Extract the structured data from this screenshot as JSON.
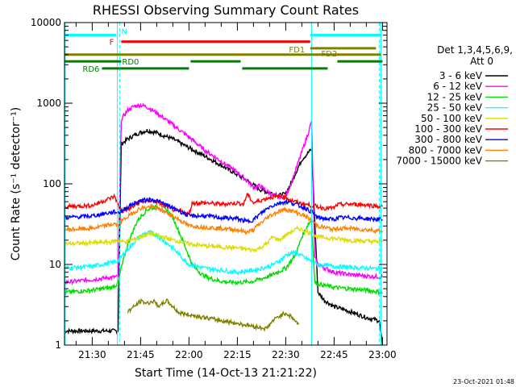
{
  "chart_data": {
    "type": "line",
    "title": "RHESSI Observing Summary Count Rates",
    "xlabel": "Start Time (14-Oct-13 21:21:22)",
    "ylabel": "Count Rate (s⁻¹ detector⁻¹)",
    "y_scale": "log",
    "ylim": [
      1,
      10000
    ],
    "y_ticks": [
      "1",
      "10",
      "100",
      "1000",
      "10000"
    ],
    "x_ticks": [
      "21:30",
      "21:45",
      "22:00",
      "22:15",
      "22:30",
      "22:45",
      "23:00"
    ],
    "x_tick_minutes": [
      30,
      45,
      60,
      75,
      90,
      105,
      120
    ],
    "xlim_minutes": [
      21.4,
      121.4
    ],
    "legend_title_1": "Det 1,3,4,5,6,9,",
    "legend_title_2": "Att 0",
    "legend_position": "right",
    "series": [
      {
        "name": "3 - 6 keV",
        "color": "#000000",
        "x": [
          21.4,
          38,
          39,
          41,
          44,
          47,
          50,
          55,
          60,
          65,
          70,
          75,
          78,
          80,
          82,
          84,
          86,
          88,
          90,
          92,
          95,
          98,
          100,
          102,
          105,
          110,
          115,
          119,
          120
        ],
        "y": [
          1.5,
          1.5,
          310,
          360,
          420,
          460,
          430,
          360,
          280,
          220,
          170,
          130,
          110,
          97,
          85,
          80,
          76,
          72,
          75,
          110,
          200,
          270,
          4.5,
          3.6,
          3,
          2.6,
          2.2,
          2,
          1
        ]
      },
      {
        "name": "6 - 12 keV",
        "color": "#ff00ff",
        "x": [
          21.4,
          30,
          37,
          38,
          39,
          41,
          43,
          45,
          47,
          50,
          55,
          60,
          65,
          70,
          75,
          78,
          80,
          82,
          84,
          86,
          88,
          90,
          92,
          95,
          97,
          98,
          99,
          100,
          102,
          105,
          110,
          115,
          120
        ],
        "y": [
          6,
          6.5,
          7,
          7,
          630,
          820,
          920,
          950,
          900,
          760,
          540,
          380,
          260,
          190,
          140,
          110,
          90,
          95,
          82,
          72,
          68,
          70,
          110,
          250,
          430,
          600,
          12,
          10,
          9,
          8,
          7.5,
          7.2,
          7
        ]
      },
      {
        "name": "12 - 25 keV",
        "color": "#00dd00",
        "x": [
          21.4,
          30,
          36,
          38,
          39,
          41,
          44,
          47,
          50,
          53,
          55,
          57,
          59,
          61,
          64,
          67,
          70,
          73,
          76,
          80,
          85,
          90,
          93,
          95,
          97,
          98,
          99,
          100,
          102,
          105,
          110,
          115,
          120
        ],
        "y": [
          4.5,
          4.8,
          5.2,
          5.8,
          9,
          18,
          35,
          48,
          52,
          48,
          38,
          25,
          16,
          10,
          7.5,
          6.6,
          6.2,
          6,
          6,
          6.2,
          7.2,
          9,
          13,
          22,
          32,
          35,
          6,
          5.8,
          5.5,
          5.2,
          5,
          4.8,
          4.5
        ]
      },
      {
        "name": "25 - 50 keV",
        "color": "#00ffff",
        "x": [
          21.4,
          30,
          36,
          38,
          40,
          42,
          44,
          46,
          48,
          50,
          52,
          55,
          58,
          60,
          65,
          70,
          75,
          80,
          85,
          88,
          90,
          92,
          94,
          96,
          98,
          100,
          105,
          110,
          115,
          120
        ],
        "y": [
          9,
          9.5,
          10.5,
          11,
          14,
          17,
          21,
          24,
          25,
          23,
          20,
          16,
          12,
          10,
          9,
          8.5,
          8,
          8.5,
          9.5,
          11,
          13,
          14,
          13.5,
          12,
          11,
          10,
          9.5,
          9.2,
          9,
          8.8
        ]
      },
      {
        "name": "50 - 100 keV",
        "color": "#dddd00",
        "x": [
          21.4,
          30,
          36,
          38,
          40,
          42,
          44,
          46,
          48,
          50,
          52,
          55,
          58,
          60,
          65,
          70,
          75,
          78,
          80,
          82,
          84,
          86,
          88,
          90,
          92,
          94,
          96,
          98,
          100,
          105,
          110,
          115,
          120
        ],
        "y": [
          18,
          18.5,
          19,
          20,
          19,
          20,
          21,
          23,
          24,
          23,
          22,
          20,
          19,
          18,
          17,
          16.5,
          16,
          15.5,
          15,
          16,
          18,
          22,
          20,
          23,
          26,
          28,
          26,
          24,
          22,
          21,
          20,
          19.5,
          19
        ]
      },
      {
        "name": "100 - 300 keV",
        "color": "#ff0000",
        "x": [
          21.4,
          30,
          37,
          38,
          39,
          42,
          45,
          48,
          50,
          52,
          55,
          58,
          60,
          61,
          65,
          70,
          75,
          77,
          78,
          80,
          82,
          85,
          88,
          90,
          92,
          94,
          96,
          98,
          100,
          102,
          105,
          106,
          110,
          115,
          120
        ],
        "y": [
          52,
          54,
          70,
          55,
          45,
          50,
          60,
          62,
          60,
          55,
          48,
          45,
          42,
          58,
          58,
          56,
          58,
          56,
          75,
          58,
          62,
          68,
          70,
          68,
          62,
          58,
          56,
          54,
          52,
          50,
          50,
          55,
          56,
          55,
          52
        ]
      },
      {
        "name": "300 - 800 keV",
        "color": "#0000ff",
        "x": [
          21.4,
          30,
          37,
          38,
          39,
          42,
          45,
          48,
          50,
          52,
          55,
          58,
          60,
          61,
          65,
          70,
          75,
          78,
          80,
          82,
          85,
          88,
          90,
          92,
          94,
          96,
          98,
          100,
          105,
          106,
          110,
          115,
          120
        ],
        "y": [
          38,
          40,
          45,
          44,
          46,
          55,
          62,
          64,
          62,
          57,
          50,
          44,
          40,
          40,
          40,
          38,
          37,
          34,
          36,
          42,
          52,
          58,
          60,
          58,
          54,
          50,
          45,
          38,
          36,
          38,
          38,
          37,
          36
        ]
      },
      {
        "name": "800 - 7000 keV",
        "color": "#ff8000",
        "x": [
          21.4,
          30,
          37,
          38,
          39,
          42,
          45,
          48,
          50,
          52,
          55,
          58,
          60,
          61,
          65,
          70,
          75,
          78,
          80,
          82,
          85,
          88,
          90,
          92,
          94,
          96,
          98,
          100,
          105,
          106,
          110,
          115,
          120
        ],
        "y": [
          27,
          28,
          32,
          30,
          34,
          42,
          50,
          52,
          50,
          46,
          40,
          34,
          30,
          30,
          29,
          28,
          27,
          25,
          27,
          32,
          40,
          46,
          48,
          46,
          43,
          40,
          35,
          30,
          27,
          28,
          28,
          27,
          26
        ]
      },
      {
        "name": "7000 - 15000 keV",
        "color": "#808000",
        "x": [
          41,
          43,
          45,
          47,
          49,
          51,
          53,
          55,
          57,
          84,
          86,
          88,
          90,
          92,
          94
        ],
        "y": [
          2.6,
          3,
          3.5,
          3.3,
          3.5,
          3,
          3.6,
          3,
          2.5,
          1.6,
          2,
          2.3,
          2.5,
          2.2,
          1.8
        ]
      }
    ],
    "state_bars": {
      "N": {
        "label": "N",
        "color": "#00ffff",
        "segments": [
          [
            21.4,
            37.5
          ],
          [
            97.6,
            119.5
          ]
        ],
        "level": 7000
      },
      "F": {
        "label": "F",
        "color": "#ff0000",
        "segments": [
          [
            39,
            97.6
          ]
        ],
        "level": 5800
      },
      "FD1": {
        "label": "FD1",
        "color": "#808000",
        "segments": [
          [
            21.4,
            119.5
          ]
        ],
        "level": 4000
      },
      "FD2": {
        "label": "FD2",
        "color": "#808000",
        "segments": [
          [
            97.6,
            118
          ]
        ],
        "level": 4800
      },
      "RD0": {
        "label": "RD0",
        "color": "#008000",
        "segments": [
          [
            21.4,
            39
          ],
          [
            60.5,
            76
          ],
          [
            106,
            120
          ]
        ],
        "level": 3300
      },
      "RD6": {
        "label": "RD6",
        "color": "#008000",
        "segments": [
          [
            33,
            60
          ],
          [
            76.5,
            103
          ]
        ],
        "level": 2700
      }
    },
    "vlines_minutes": [
      21.6,
      37.8,
      98,
      119.5
    ],
    "vlines_dashed_minutes": [
      38.5,
      119
    ]
  },
  "footer": {
    "date_stamp": "23-Oct-2021 01:48"
  }
}
